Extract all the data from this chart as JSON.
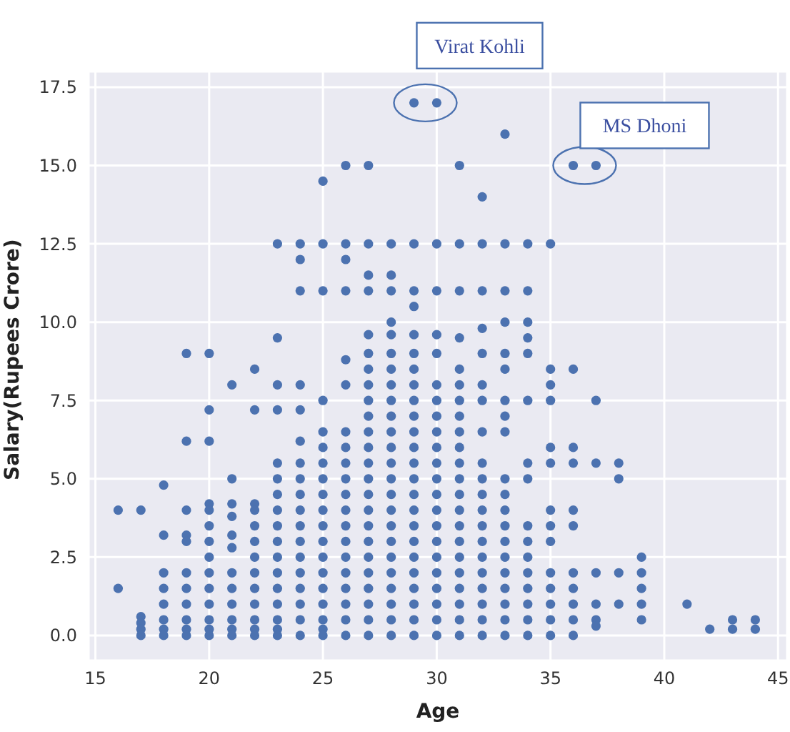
{
  "chart_data": {
    "type": "scatter",
    "xlabel": "Age",
    "ylabel": "Salary(Rupees Crore)",
    "color": "#4c72b0",
    "marker": "circle",
    "grid": true,
    "xlim": [
      14.7,
      45.4
    ],
    "ylim": [
      -0.8,
      18
    ],
    "xticks": [
      15,
      20,
      25,
      30,
      35,
      40,
      45
    ],
    "yticks": [
      {
        "value": 0,
        "label": "0.0"
      },
      {
        "value": 2.5,
        "label": "2.5"
      },
      {
        "value": 5,
        "label": "5.0"
      },
      {
        "value": 7.5,
        "label": "7.5"
      },
      {
        "value": 10,
        "label": "10.0"
      },
      {
        "value": 12.5,
        "label": "12.5"
      },
      {
        "value": 15,
        "label": "15.0"
      },
      {
        "value": 17.5,
        "label": "17.5"
      }
    ],
    "annotations": [
      {
        "text": "Virat Kohli",
        "x": 29.5,
        "y": 17
      },
      {
        "text": "MS Dhoni",
        "x": 36.5,
        "y": 15
      }
    ],
    "x": [
      16,
      16,
      17,
      17,
      17,
      17,
      17,
      18,
      18,
      18,
      18,
      18,
      18,
      18,
      18,
      19,
      19,
      19,
      19,
      19,
      19,
      19,
      19,
      19,
      19,
      19,
      20,
      20,
      20,
      20,
      20,
      20,
      20,
      20,
      20,
      20,
      20,
      20,
      20,
      20,
      21,
      21,
      21,
      21,
      21,
      21,
      21,
      21,
      21,
      21,
      21,
      21,
      22,
      22,
      22,
      22,
      22,
      22,
      22,
      22,
      22,
      22,
      22,
      22,
      22,
      23,
      23,
      23,
      23,
      23,
      23,
      23,
      23,
      23,
      23,
      23,
      23,
      23,
      23,
      23,
      23,
      23,
      24,
      24,
      24,
      24,
      24,
      24,
      24,
      24,
      24,
      24,
      24,
      24,
      24,
      24,
      24,
      24,
      24,
      24,
      25,
      25,
      25,
      25,
      25,
      25,
      25,
      25,
      25,
      25,
      25,
      25,
      25,
      25,
      25,
      25,
      25,
      25,
      25,
      26,
      26,
      26,
      26,
      26,
      26,
      26,
      26,
      26,
      26,
      26,
      26,
      26,
      26,
      26,
      26,
      26,
      26,
      26,
      26,
      27,
      27,
      27,
      27,
      27,
      27,
      27,
      27,
      27,
      27,
      27,
      27,
      27,
      27,
      27,
      27,
      27,
      27,
      27,
      27,
      27,
      27,
      27,
      27,
      28,
      28,
      28,
      28,
      28,
      28,
      28,
      28,
      28,
      28,
      28,
      28,
      28,
      28,
      28,
      28,
      28,
      28,
      28,
      28,
      28,
      28,
      28,
      28,
      29,
      29,
      29,
      29,
      29,
      29,
      29,
      29,
      29,
      29,
      29,
      29,
      29,
      29,
      29,
      29,
      29,
      29,
      29,
      29,
      29,
      29,
      29,
      29,
      30,
      30,
      30,
      30,
      30,
      30,
      30,
      30,
      30,
      30,
      30,
      30,
      30,
      30,
      30,
      30,
      30,
      30,
      30,
      30,
      30,
      30,
      31,
      31,
      31,
      31,
      31,
      31,
      31,
      31,
      31,
      31,
      31,
      31,
      31,
      31,
      31,
      31,
      31,
      31,
      31,
      31,
      31,
      31,
      32,
      32,
      32,
      32,
      32,
      32,
      32,
      32,
      32,
      32,
      32,
      32,
      32,
      32,
      32,
      32,
      32,
      32,
      32,
      32,
      33,
      33,
      33,
      33,
      33,
      33,
      33,
      33,
      33,
      33,
      33,
      33,
      33,
      33,
      33,
      33,
      33,
      33,
      33,
      33,
      34,
      34,
      34,
      34,
      34,
      34,
      34,
      34,
      34,
      34,
      34,
      34,
      34,
      34,
      34,
      34,
      35,
      35,
      35,
      35,
      35,
      35,
      35,
      35,
      35,
      35,
      35,
      35,
      35,
      35,
      36,
      36,
      36,
      36,
      36,
      36,
      36,
      36,
      36,
      36,
      36,
      37,
      37,
      37,
      37,
      37,
      37,
      37,
      38,
      38,
      38,
      38,
      39,
      39,
      39,
      39,
      39,
      41,
      42,
      43,
      43,
      44,
      44
    ],
    "values": [
      4,
      1.5,
      4,
      0.6,
      0.4,
      0.2,
      0,
      4.8,
      3.2,
      2,
      1.5,
      1,
      0.5,
      0.2,
      0,
      9,
      6.2,
      4,
      3.2,
      3,
      2,
      1.5,
      1,
      0.5,
      0.2,
      0,
      9,
      7.2,
      6.2,
      4.2,
      4,
      3.5,
      3,
      2.5,
      2,
      1.5,
      1,
      0.5,
      0.2,
      0,
      8,
      5,
      4.2,
      3.8,
      3.2,
      2.8,
      2,
      1.5,
      1,
      0.5,
      0.2,
      0,
      8.5,
      7.2,
      4.2,
      4,
      3.5,
      3,
      2.5,
      2,
      1.5,
      1,
      0.5,
      0.2,
      0,
      12.5,
      9.5,
      8,
      7.2,
      5.5,
      5,
      4.5,
      4,
      3.5,
      3,
      2.5,
      2,
      1.5,
      1,
      0.5,
      0.2,
      0,
      12.5,
      12,
      11,
      8,
      7.2,
      6.2,
      5.5,
      5,
      4.5,
      4,
      3.5,
      3,
      2.5,
      2,
      1.5,
      1,
      0.5,
      0,
      14.5,
      12.5,
      11,
      7.5,
      6.5,
      6,
      5.5,
      5,
      4.5,
      4,
      3.5,
      3,
      2.5,
      2,
      1.5,
      1,
      0.5,
      0.2,
      0,
      15,
      12.5,
      12,
      11,
      8.8,
      8,
      6.5,
      6,
      5.5,
      5,
      4.5,
      4,
      3.5,
      3,
      2.5,
      2,
      1.5,
      1,
      0.5,
      0,
      15,
      12.5,
      11.5,
      11,
      9.6,
      9,
      8.5,
      8,
      7.5,
      7,
      6.5,
      6,
      5.5,
      5,
      4.5,
      4,
      3.5,
      3,
      2.5,
      2,
      1.5,
      1,
      0.5,
      0,
      12.5,
      11.5,
      11,
      10,
      9.6,
      9,
      8.5,
      8,
      7.5,
      7,
      6.5,
      6,
      5.5,
      5,
      4.5,
      4,
      3.5,
      3,
      2.5,
      2,
      1.5,
      1,
      0.5,
      0,
      17,
      12.5,
      11,
      10.5,
      9.6,
      9,
      8.5,
      8,
      7.5,
      7,
      6.5,
      6,
      5.5,
      5,
      4.5,
      4,
      3.5,
      3,
      2.5,
      2,
      1.5,
      1,
      0.5,
      0,
      17,
      12.5,
      11,
      9.6,
      9,
      8,
      7.5,
      7,
      6.5,
      6,
      5.5,
      5,
      4.5,
      4,
      3.5,
      3,
      2.5,
      2,
      1.5,
      1,
      0.5,
      0,
      15,
      12.5,
      11,
      9.5,
      8.5,
      8,
      7.5,
      7,
      6.5,
      6,
      5.5,
      5,
      4.5,
      4,
      3.5,
      3,
      2.5,
      2,
      1.5,
      1,
      0.5,
      0,
      14,
      12.5,
      11,
      9.8,
      9,
      8,
      7.5,
      6.5,
      5.5,
      5,
      4.5,
      4,
      3.5,
      3,
      2.5,
      2,
      1.5,
      1,
      0.5,
      0,
      16,
      12.5,
      11,
      10,
      9,
      8.5,
      7.5,
      7,
      6.5,
      5,
      4.5,
      4,
      3.5,
      3,
      2.5,
      2,
      1.5,
      1,
      0.5,
      0,
      12.5,
      11,
      10,
      9.5,
      9,
      7.5,
      5.5,
      5,
      3.5,
      3,
      2.5,
      2,
      1.5,
      1,
      0.5,
      0,
      12.5,
      8.5,
      8,
      7.5,
      6,
      5.5,
      4,
      3.5,
      3,
      2,
      1.5,
      1,
      0.5,
      0,
      15,
      8.5,
      6,
      5.5,
      4,
      3.5,
      2,
      1.5,
      1,
      0.5,
      0,
      15,
      7.5,
      5.5,
      2,
      1,
      0.5,
      0.3,
      5.5,
      5,
      2,
      1,
      2.5,
      2,
      1.5,
      1,
      0.5,
      1,
      0.2,
      0.5,
      0.2,
      0.5,
      0.2
    ]
  }
}
